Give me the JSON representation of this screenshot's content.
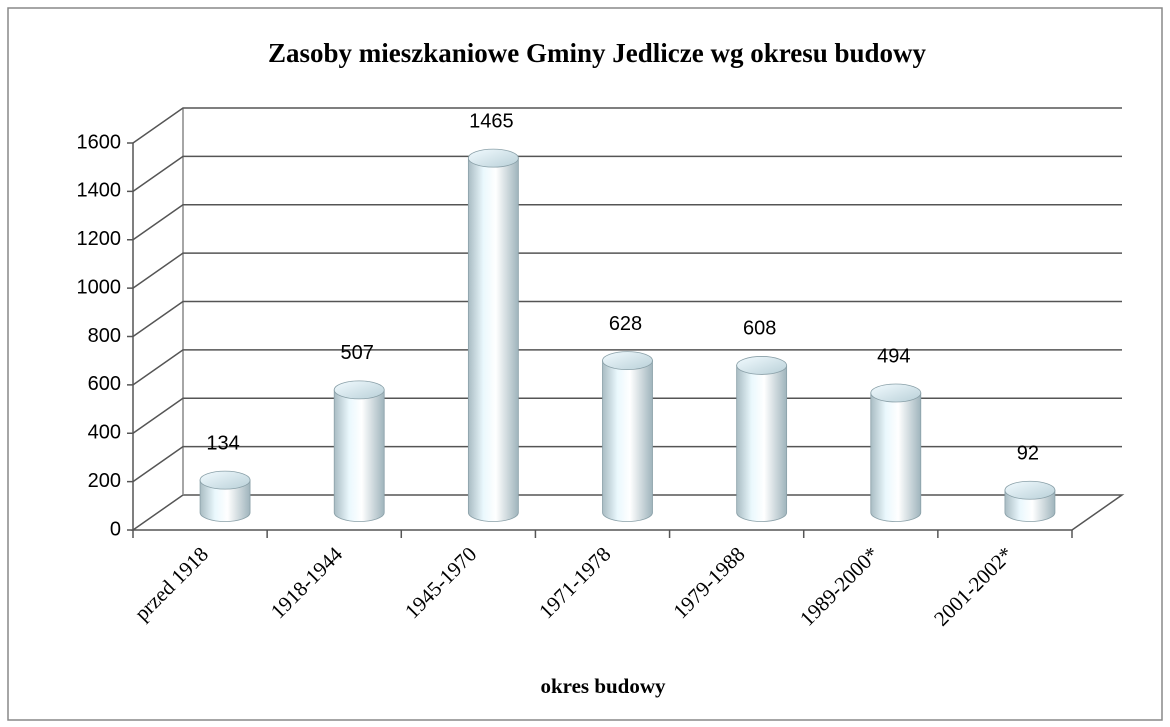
{
  "chart_data": {
    "type": "bar",
    "title": "Zasoby mieszkaniowe Gminy Jedlicze wg okresu budowy",
    "x_label": "okres budowy",
    "categories": [
      "przed 1918",
      "1918-1944",
      "1945-1970",
      "1971-1978",
      "1979-1988",
      "1989-2000*",
      "2001-2002*"
    ],
    "values": [
      134,
      507,
      1465,
      628,
      608,
      494,
      92
    ],
    "color": "#dff4fb",
    "ylim": [
      0,
      1600
    ],
    "yticks": [
      0,
      200,
      400,
      600,
      800,
      1000,
      1200,
      1400,
      1600
    ],
    "grid": true
  }
}
